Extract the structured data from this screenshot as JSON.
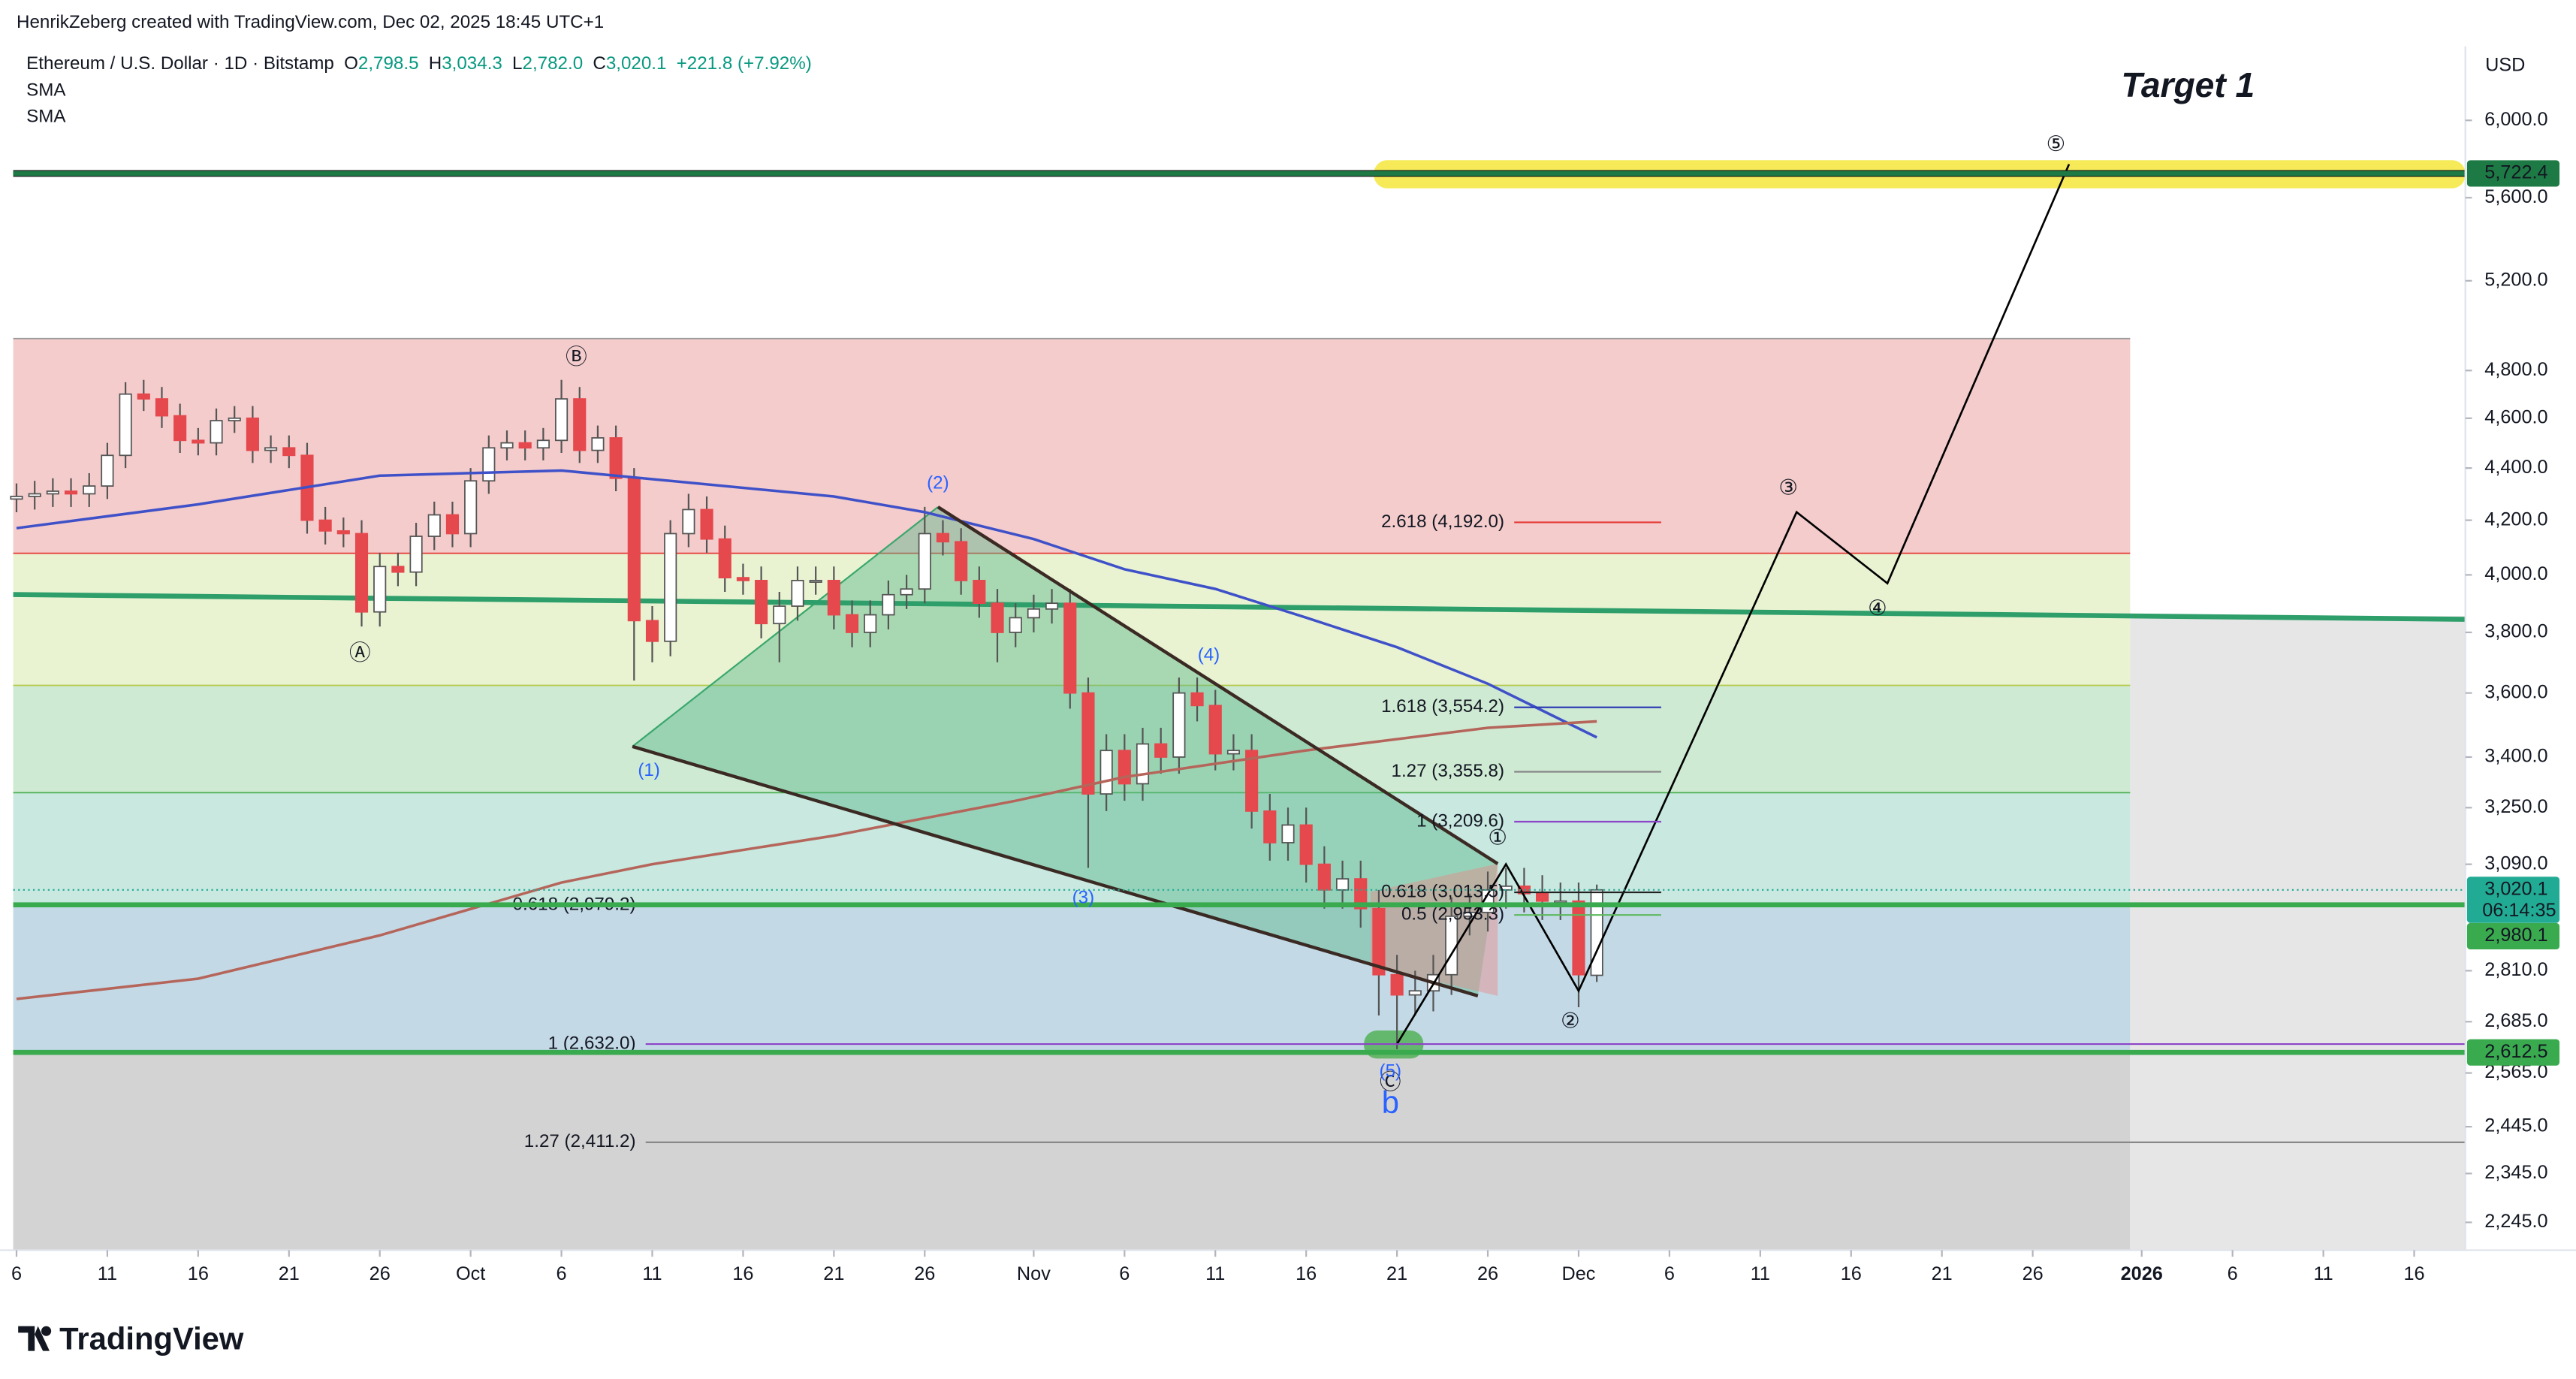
{
  "header": {
    "watermark": "HenrikZeberg created with TradingView.com, Dec 02, 2025 18:45 UTC+1",
    "symbol": "Ethereum / U.S. Dollar · 1D · Bitstamp",
    "o": "O",
    "o_value": "2,798.5",
    "h": "H",
    "h_value": "3,034.3",
    "l": "L",
    "l_value": "2,782.0",
    "c": "C",
    "c_value": "3,020.1",
    "change": "+221.8 (+7.92%)",
    "sma1": "SMA",
    "sma2": "SMA",
    "currency": "USD",
    "target": "Target 1",
    "logo": "TradingView"
  },
  "waves": [
    "Ⓐ",
    "Ⓑ",
    "Ⓒ",
    "(1)",
    "(2)",
    "(3)",
    "(4)",
    "(5)",
    "①",
    "②",
    "③",
    "④",
    "⑤",
    "b"
  ],
  "chart_data": {
    "type": "candlestick",
    "log": true,
    "ylim": [
      2190,
      6410
    ],
    "xlim": [
      "2025-09-06",
      "2026-01-19"
    ],
    "yticks": [
      {
        "value": 6000,
        "label": "6,000.0"
      },
      {
        "value": 5600,
        "label": "5,600.0"
      },
      {
        "value": 5200,
        "label": "5,200.0"
      },
      {
        "value": 4800,
        "label": "4,800.0"
      },
      {
        "value": 4600,
        "label": "4,600.0"
      },
      {
        "value": 4400,
        "label": "4,400.0"
      },
      {
        "value": 4200,
        "label": "4,200.0"
      },
      {
        "value": 4000,
        "label": "4,000.0"
      },
      {
        "value": 3800,
        "label": "3,800.0"
      },
      {
        "value": 3600,
        "label": "3,600.0"
      },
      {
        "value": 3400,
        "label": "3,400.0"
      },
      {
        "value": 3250,
        "label": "3,250.0"
      },
      {
        "value": 3090,
        "label": "3,090.0"
      },
      {
        "value": 2810,
        "label": "2,810.0"
      },
      {
        "value": 2685,
        "label": "2,685.0"
      },
      {
        "value": 2565,
        "label": "2,565.0"
      },
      {
        "value": 2445,
        "label": "2,445.0"
      },
      {
        "value": 2345,
        "label": "2,345.0"
      },
      {
        "value": 2245,
        "label": "2,245.0"
      }
    ],
    "xticks": [
      {
        "value": "2025-09-06",
        "label": "6"
      },
      {
        "value": "2025-09-11",
        "label": "11"
      },
      {
        "value": "2025-09-16",
        "label": "16"
      },
      {
        "value": "2025-09-21",
        "label": "21"
      },
      {
        "value": "2025-09-26",
        "label": "26"
      },
      {
        "value": "2025-10-01",
        "label": "Oct"
      },
      {
        "value": "2025-10-06",
        "label": "6"
      },
      {
        "value": "2025-10-11",
        "label": "11"
      },
      {
        "value": "2025-10-16",
        "label": "16"
      },
      {
        "value": "2025-10-21",
        "label": "21"
      },
      {
        "value": "2025-10-26",
        "label": "26"
      },
      {
        "value": "2025-11-01",
        "label": "Nov"
      },
      {
        "value": "2025-11-06",
        "label": "6"
      },
      {
        "value": "2025-11-11",
        "label": "11"
      },
      {
        "value": "2025-11-16",
        "label": "16"
      },
      {
        "value": "2025-11-21",
        "label": "21"
      },
      {
        "value": "2025-11-26",
        "label": "26"
      },
      {
        "value": "2025-12-01",
        "label": "Dec"
      },
      {
        "value": "2025-12-06",
        "label": "6"
      },
      {
        "value": "2025-12-11",
        "label": "11"
      },
      {
        "value": "2025-12-16",
        "label": "16"
      },
      {
        "value": "2025-12-21",
        "label": "21"
      },
      {
        "value": "2025-12-26",
        "label": "26"
      },
      {
        "value": "2026-01-01",
        "label": "2026"
      },
      {
        "value": "2026-01-06",
        "label": "6"
      },
      {
        "value": "2026-01-11",
        "label": "11"
      },
      {
        "value": "2026-01-16",
        "label": "16"
      }
    ],
    "x": [
      "2025-09-06",
      "2025-09-07",
      "2025-09-08",
      "2025-09-09",
      "2025-09-10",
      "2025-09-11",
      "2025-09-12",
      "2025-09-13",
      "2025-09-14",
      "2025-09-15",
      "2025-09-16",
      "2025-09-17",
      "2025-09-18",
      "2025-09-19",
      "2025-09-20",
      "2025-09-21",
      "2025-09-22",
      "2025-09-23",
      "2025-09-24",
      "2025-09-25",
      "2025-09-26",
      "2025-09-27",
      "2025-09-28",
      "2025-09-29",
      "2025-09-30",
      "2025-10-01",
      "2025-10-02",
      "2025-10-03",
      "2025-10-04",
      "2025-10-05",
      "2025-10-06",
      "2025-10-07",
      "2025-10-08",
      "2025-10-09",
      "2025-10-10",
      "2025-10-11",
      "2025-10-12",
      "2025-10-13",
      "2025-10-14",
      "2025-10-15",
      "2025-10-16",
      "2025-10-17",
      "2025-10-18",
      "2025-10-19",
      "2025-10-20",
      "2025-10-21",
      "2025-10-22",
      "2025-10-23",
      "2025-10-24",
      "2025-10-25",
      "2025-10-26",
      "2025-10-27",
      "2025-10-28",
      "2025-10-29",
      "2025-10-30",
      "2025-10-31",
      "2025-11-01",
      "2025-11-02",
      "2025-11-03",
      "2025-11-04",
      "2025-11-05",
      "2025-11-06",
      "2025-11-07",
      "2025-11-08",
      "2025-11-09",
      "2025-11-10",
      "2025-11-11",
      "2025-11-12",
      "2025-11-13",
      "2025-11-14",
      "2025-11-15",
      "2025-11-16",
      "2025-11-17",
      "2025-11-18",
      "2025-11-19",
      "2025-11-20",
      "2025-11-21",
      "2025-11-22",
      "2025-11-23",
      "2025-11-24",
      "2025-11-25",
      "2025-11-26",
      "2025-11-27",
      "2025-11-28",
      "2025-11-29",
      "2025-11-30",
      "2025-12-01",
      "2025-12-02"
    ],
    "open": [
      4280,
      4290,
      4300,
      4310,
      4300,
      4330,
      4450,
      4700,
      4680,
      4610,
      4510,
      4500,
      4590,
      4600,
      4470,
      4480,
      4450,
      4200,
      4160,
      4150,
      3870,
      4030,
      4010,
      4140,
      4220,
      4150,
      4350,
      4480,
      4500,
      4480,
      4510,
      4680,
      4470,
      4520,
      4360,
      3840,
      3770,
      4150,
      4240,
      4130,
      3990,
      3980,
      3830,
      3890,
      3980,
      3980,
      3860,
      3800,
      3860,
      3930,
      3950,
      4150,
      4120,
      3980,
      3900,
      3800,
      3850,
      3880,
      3900,
      3600,
      3290,
      3420,
      3320,
      3440,
      3400,
      3600,
      3560,
      3410,
      3420,
      3240,
      3150,
      3200,
      3090,
      3020,
      3050,
      2970,
      2800,
      2750,
      2760,
      2800,
      2950,
      2960,
      3020,
      3030,
      3010,
      2990,
      2990,
      2798.5
    ],
    "high": [
      4340,
      4350,
      4360,
      4360,
      4380,
      4500,
      4750,
      4760,
      4730,
      4660,
      4560,
      4640,
      4650,
      4650,
      4530,
      4530,
      4500,
      4250,
      4210,
      4200,
      4080,
      4080,
      4190,
      4270,
      4270,
      4400,
      4530,
      4550,
      4550,
      4560,
      4760,
      4730,
      4570,
      4570,
      4400,
      3890,
      4200,
      4300,
      4290,
      4180,
      4040,
      4030,
      3940,
      4030,
      4030,
      4030,
      3910,
      3910,
      3980,
      4000,
      4250,
      4200,
      4170,
      4030,
      3950,
      3900,
      3930,
      3950,
      3950,
      3650,
      3470,
      3470,
      3490,
      3490,
      3650,
      3650,
      3610,
      3470,
      3470,
      3290,
      3250,
      3250,
      3140,
      3100,
      3100,
      3020,
      2850,
      2810,
      2850,
      3000,
      3010,
      3070,
      3080,
      3080,
      3060,
      3040,
      3040,
      3034.3
    ],
    "low": [
      4230,
      4240,
      4250,
      4250,
      4250,
      4280,
      4400,
      4630,
      4560,
      4460,
      4450,
      4450,
      4540,
      4420,
      4420,
      4400,
      4150,
      4110,
      4100,
      3820,
      3820,
      3960,
      3960,
      4090,
      4100,
      4100,
      4300,
      4430,
      4430,
      4430,
      4460,
      4420,
      4420,
      4310,
      3640,
      3700,
      3720,
      4100,
      4080,
      3940,
      3930,
      3780,
      3700,
      3840,
      3930,
      3810,
      3750,
      3750,
      3810,
      3880,
      3900,
      4070,
      3930,
      3850,
      3700,
      3750,
      3800,
      3830,
      3550,
      3080,
      3240,
      3270,
      3270,
      3350,
      3350,
      3510,
      3360,
      3360,
      3190,
      3100,
      3100,
      3040,
      2970,
      2970,
      2920,
      2700,
      2620,
      2700,
      2710,
      2750,
      2900,
      2910,
      2970,
      2960,
      2940,
      2940,
      2720,
      2782.0
    ],
    "close": [
      4290,
      4300,
      4310,
      4300,
      4330,
      4450,
      4700,
      4680,
      4610,
      4510,
      4500,
      4590,
      4600,
      4470,
      4480,
      4450,
      4200,
      4160,
      4150,
      3870,
      4030,
      4010,
      4140,
      4220,
      4150,
      4350,
      4480,
      4500,
      4480,
      4510,
      4680,
      4470,
      4520,
      4360,
      3840,
      3770,
      4150,
      4240,
      4130,
      3990,
      3980,
      3830,
      3890,
      3980,
      3980,
      3860,
      3800,
      3860,
      3930,
      3950,
      4150,
      4120,
      3980,
      3900,
      3800,
      3850,
      3880,
      3900,
      3600,
      3290,
      3420,
      3320,
      3440,
      3400,
      3600,
      3560,
      3410,
      3420,
      3240,
      3150,
      3200,
      3090,
      3020,
      3050,
      2970,
      2800,
      2750,
      2760,
      2800,
      2950,
      2960,
      3020,
      3030,
      3010,
      2990,
      2990,
      2800,
      3020.1
    ],
    "up_color": "#ffffff",
    "down_color": "#e5484d",
    "wick_color": "#555555",
    "series": [
      {
        "color": "#3f51c8",
        "x": [
          "2025-09-06",
          "2025-09-16",
          "2025-09-26",
          "2025-10-06",
          "2025-10-21",
          "2025-10-26",
          "2025-11-01",
          "2025-11-06",
          "2025-11-11",
          "2025-11-16",
          "2025-11-21",
          "2025-11-26",
          "2025-12-02"
        ],
        "values": [
          4170,
          4260,
          4370,
          4390,
          4290,
          4230,
          4130,
          4020,
          3950,
          3850,
          3750,
          3630,
          3460
        ]
      },
      {
        "color": "#b5655a",
        "x": [
          "2025-09-06",
          "2025-09-16",
          "2025-09-26",
          "2025-10-06",
          "2025-10-11",
          "2025-10-21",
          "2025-10-31",
          "2025-11-06",
          "2025-11-16",
          "2025-11-26",
          "2025-12-02"
        ],
        "values": [
          2740,
          2790,
          2900,
          3040,
          3090,
          3170,
          3270,
          3340,
          3420,
          3490,
          3510
        ]
      }
    ],
    "projection": {
      "color": "#000000",
      "x": [
        "2025-11-21",
        "2025-11-27",
        "2025-12-01",
        "2025-12-13",
        "2025-12-18",
        "2025-12-28"
      ],
      "values": [
        2632,
        3090,
        2760,
        4230,
        3970,
        5770
      ]
    },
    "levels": [
      {
        "value": 5722.4,
        "label": "5,722.4",
        "color": "#1e7a45"
      },
      {
        "value": 3020.1,
        "label": "3,020.1",
        "color": "#22ab94",
        "countdown": "06:14:35"
      },
      {
        "value": 2980.1,
        "label": "2,980.1",
        "color": "#3aaa4f"
      },
      {
        "value": 2612.5,
        "label": "2,612.5",
        "color": "#3aaa4f"
      }
    ],
    "fib_right": [
      {
        "value": 4192.0,
        "label": "2.618 (4,192.0)",
        "color": "#e53935"
      },
      {
        "value": 3554.2,
        "label": "1.618 (3,554.2)",
        "color": "#2f3fb5"
      },
      {
        "value": 3355.8,
        "label": "1.27 (3,355.8)",
        "color": "#888888"
      },
      {
        "value": 3209.6,
        "label": "1 (3,209.6)",
        "color": "#8e44c8"
      },
      {
        "value": 3013.5,
        "label": "0.618 (3,013.5)",
        "color": "#222222"
      },
      {
        "value": 2953.3,
        "label": "0.5 (2,953.3)",
        "color": "#5cb85c"
      }
    ],
    "fib_left": [
      {
        "value": 2979.2,
        "label": "0.618 (2,979.2)",
        "color": "#222222"
      },
      {
        "value": 2632.0,
        "label": "1 (2,632.0)",
        "color": "#8e44c8"
      },
      {
        "value": 2411.2,
        "label": "1.27 (2,411.2)",
        "color": "#888888"
      }
    ]
  }
}
